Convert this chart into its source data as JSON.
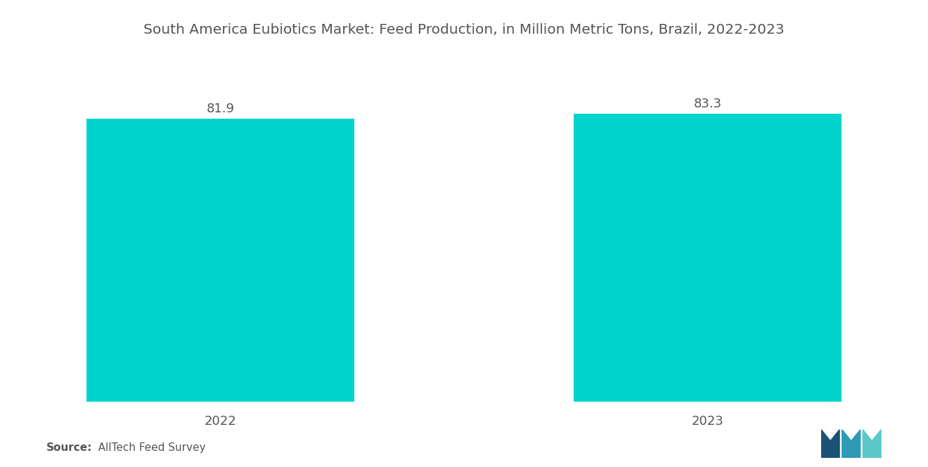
{
  "title": "South America Eubiotics Market: Feed Production, in Million Metric Tons, Brazil, 2022-2023",
  "categories": [
    "2022",
    "2023"
  ],
  "values": [
    81.9,
    83.3
  ],
  "bar_color": "#00D4CC",
  "value_labels": [
    "81.9",
    "83.3"
  ],
  "source_bold": "Source:",
  "source_normal": "   AllTech Feed Survey",
  "title_fontsize": 14.5,
  "label_fontsize": 13,
  "value_fontsize": 13,
  "source_fontsize": 11,
  "background_color": "#ffffff",
  "text_color": "#555555",
  "ylim": [
    0,
    100
  ],
  "bar_width": 0.55,
  "xlim": [
    -0.3,
    1.3
  ]
}
